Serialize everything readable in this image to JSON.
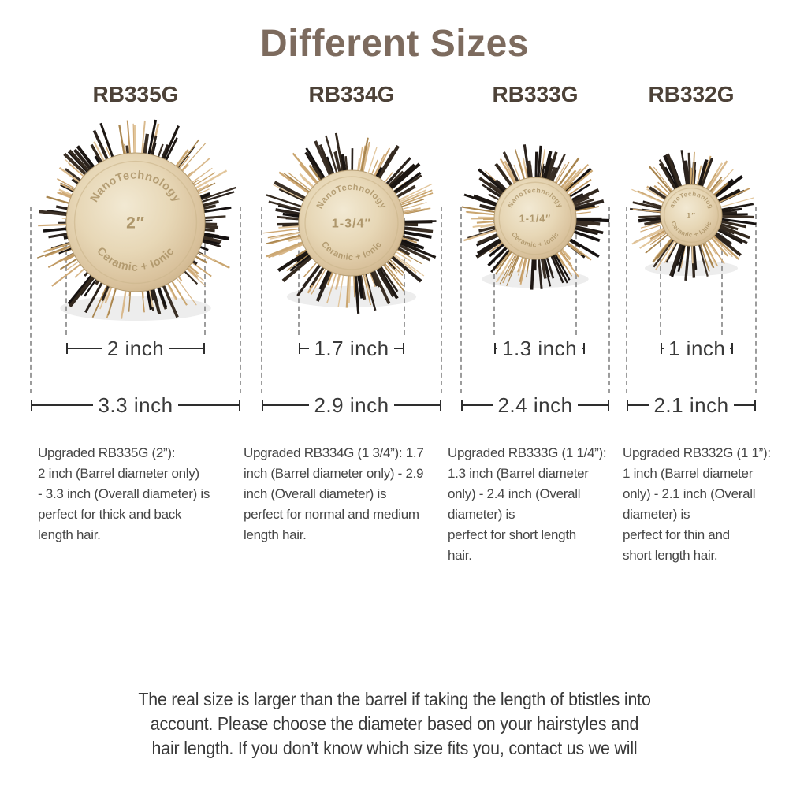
{
  "title": "Different Sizes",
  "colors": {
    "title_brown": "#7d6b5e",
    "label_brown": "#4d4238",
    "dimension_line": "#2e2e2e",
    "dash_gray": "#9c9c9c",
    "barrel_gold": "#e5d6b8",
    "bristle_tan": "#d9b98c",
    "bristle_dark": "#2b231d"
  },
  "brushes": [
    {
      "model": "RB335G",
      "barrel_text_top": "NanoTechnology",
      "barrel_text_size": "2″",
      "barrel_text_bottom": "Ceramic + Ionic",
      "barrel_inches": 2.0,
      "overall_inches": 3.3,
      "barrel_label": "2 inch",
      "overall_label": "3.3 inch",
      "description": "Upgraded RB335G (2”):\n2 inch (Barrel diameter only)\n- 3.3 inch (Overall diameter) is\nperfect for thick and back\nlength hair."
    },
    {
      "model": "RB334G",
      "barrel_text_top": "NanoTechnology",
      "barrel_text_size": "1-3/4″",
      "barrel_text_bottom": "Ceramic + Ionic",
      "barrel_inches": 1.7,
      "overall_inches": 2.9,
      "barrel_label": "1.7 inch",
      "overall_label": "2.9 inch",
      "description": "Upgraded RB334G (1 3/4”): 1.7\ninch (Barrel diameter only) - 2.9\ninch (Overall diameter) is\nperfect for normal and medium\nlength hair."
    },
    {
      "model": "RB333G",
      "barrel_text_top": "NanoTechnology",
      "barrel_text_size": "1-1/4″",
      "barrel_text_bottom": "Ceramic + Ionic",
      "barrel_inches": 1.3,
      "overall_inches": 2.4,
      "barrel_label": "1.3 inch",
      "overall_label": "2.4 inch",
      "description": "Upgraded RB333G (1 1/4”):\n1.3 inch (Barrel diameter\nonly) - 2.4 inch (Overall\ndiameter) is\nperfect for short length\nhair."
    },
    {
      "model": "RB332G",
      "barrel_text_top": "NanoTechnology",
      "barrel_text_size": "1″",
      "barrel_text_bottom": "Ceramic + Ionic",
      "barrel_inches": 1.0,
      "overall_inches": 2.1,
      "barrel_label": "1 inch",
      "overall_label": "2.1 inch",
      "description": "Upgraded RB332G (1 1”):\n1 inch (Barrel diameter\nonly) - 2.1 inch (Overall\ndiameter) is\nperfect for thin and\nshort length hair."
    }
  ],
  "footer": "The real size is larger than the barrel if taking the length of btistles into\naccount. Please choose the diameter based on your hairstyles and\nhair length. If you don’t know which size fits you, contact us we will"
}
